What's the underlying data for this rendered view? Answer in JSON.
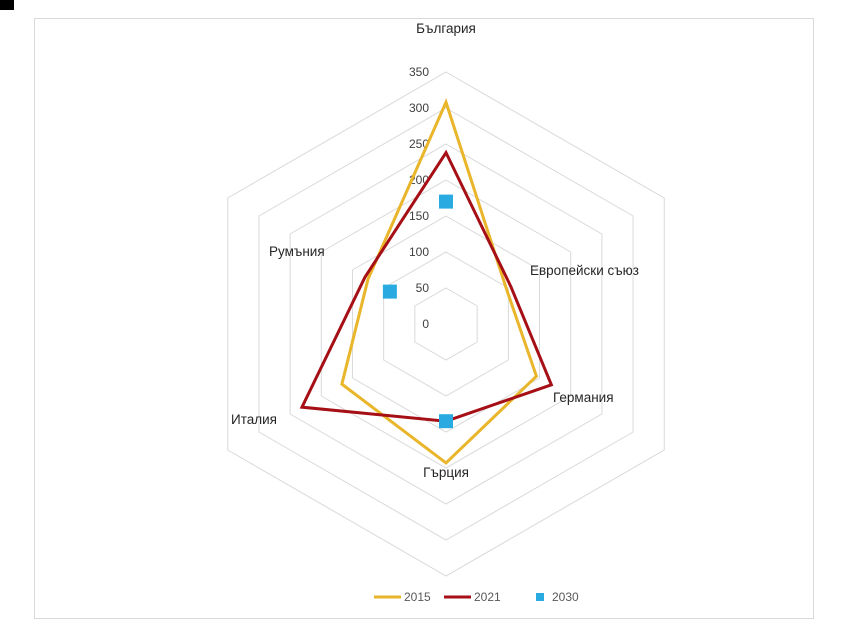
{
  "chart_data": {
    "type": "radar",
    "categories": [
      "България",
      "Европейски съюз",
      "Германия",
      "Гърция",
      "Италия",
      "Румъния"
    ],
    "ticks": [
      0,
      50,
      100,
      150,
      200,
      250,
      300,
      350
    ],
    "range": [
      0,
      350
    ],
    "grid": true,
    "legend_position": "bottom",
    "series": [
      {
        "name": "2015",
        "style": "line",
        "color": "#e9b52a",
        "values": [
          308,
          97,
          145,
          193,
          167,
          125
        ]
      },
      {
        "name": "2021",
        "style": "line",
        "color": "#a50f15",
        "values": [
          238,
          104,
          169,
          135,
          231,
          130
        ]
      },
      {
        "name": "2030",
        "style": "marker",
        "color": "#29abe2",
        "values": [
          170,
          null,
          null,
          135,
          null,
          90
        ]
      }
    ]
  }
}
